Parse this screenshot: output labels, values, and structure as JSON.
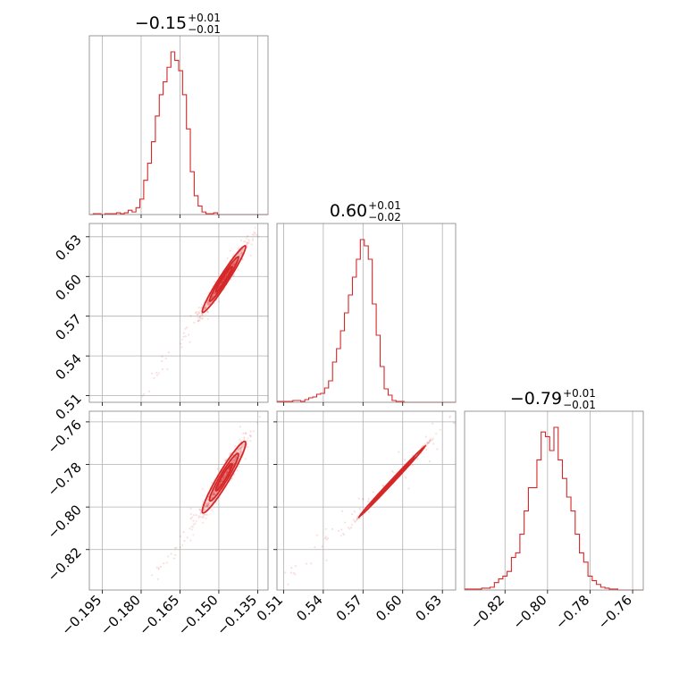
{
  "chart_data": {
    "type": "corner",
    "colors": {
      "main": "#d62728",
      "grid": "#b0b0b0",
      "frame": "#808080"
    },
    "grid": true,
    "parameters": [
      {
        "median": "−0.15",
        "plus": "+0.01",
        "minus": "−0.01",
        "range": [
          -0.2,
          -0.131
        ],
        "ticks": [
          -0.195,
          -0.18,
          -0.165,
          -0.15,
          -0.135
        ],
        "tick_labels": [
          "−0.195",
          "−0.180",
          "−0.165",
          "−0.150",
          "−0.135"
        ]
      },
      {
        "median": "0.60",
        "plus": "+0.01",
        "minus": "−0.02",
        "range": [
          0.505,
          0.64
        ],
        "ticks": [
          0.51,
          0.54,
          0.57,
          0.6,
          0.63
        ],
        "tick_labels": [
          "0.51",
          "0.54",
          "0.57",
          "0.60",
          "0.63"
        ]
      },
      {
        "median": "−0.79",
        "plus": "+0.01",
        "minus": "−0.01",
        "range": [
          -0.839,
          -0.755
        ],
        "ticks": [
          -0.82,
          -0.8,
          -0.78,
          -0.76
        ],
        "tick_labels": [
          "−0.82",
          "−0.80",
          "−0.78",
          "−0.76"
        ]
      }
    ],
    "histograms": [
      {
        "param": 0,
        "edges_start": -0.2,
        "bin_width": 0.0015,
        "counts": [
          0,
          1,
          1,
          0,
          1,
          1,
          1,
          2,
          1,
          2,
          5,
          3,
          8,
          18,
          40,
          60,
          85,
          115,
          140,
          155,
          172,
          190,
          180,
          168,
          140,
          100,
          50,
          22,
          10,
          3,
          1,
          1,
          2,
          0,
          0,
          0,
          0,
          0,
          0,
          0,
          0,
          0,
          0,
          0,
          0,
          0
        ]
      },
      {
        "param": 1,
        "edges_start": 0.505,
        "bin_width": 0.003,
        "counts": [
          1,
          1,
          1,
          1,
          2,
          2,
          1,
          3,
          5,
          6,
          9,
          10,
          16,
          24,
          45,
          60,
          80,
          100,
          120,
          140,
          160,
          182,
          175,
          160,
          110,
          75,
          40,
          15,
          8,
          2,
          1,
          1,
          0,
          0,
          0,
          0,
          0,
          0,
          0,
          0,
          0,
          0,
          0,
          0,
          0
        ]
      },
      {
        "param": 2,
        "edges_start": -0.839,
        "bin_width": 0.002,
        "counts": [
          1,
          1,
          1,
          1,
          2,
          2,
          3,
          8,
          12,
          15,
          20,
          35,
          40,
          60,
          85,
          110,
          110,
          140,
          170,
          165,
          150,
          175,
          140,
          120,
          100,
          85,
          60,
          40,
          30,
          15,
          10,
          6,
          3,
          2,
          1,
          1,
          0,
          0,
          0,
          0,
          0,
          0
        ]
      }
    ],
    "pairs": [
      {
        "x_param": 0,
        "y_param": 1,
        "correlation": 0.97,
        "center": [
          -0.148,
          0.598
        ],
        "sd": [
          0.004,
          0.012
        ],
        "tail_from": [
          -0.178,
          0.515
        ],
        "tail_to": [
          -0.136,
          0.632
        ]
      },
      {
        "x_param": 0,
        "y_param": 2,
        "correlation": 0.95,
        "center": [
          -0.148,
          -0.786
        ],
        "sd": [
          0.004,
          0.008
        ],
        "tail_from": [
          -0.175,
          -0.832
        ],
        "tail_to": [
          -0.137,
          -0.762
        ]
      },
      {
        "x_param": 1,
        "y_param": 2,
        "correlation": 0.998,
        "center": [
          0.592,
          -0.788
        ],
        "sd": [
          0.012,
          0.008
        ],
        "tail_from": [
          0.515,
          -0.833
        ],
        "tail_to": [
          0.64,
          -0.758
        ]
      }
    ]
  }
}
